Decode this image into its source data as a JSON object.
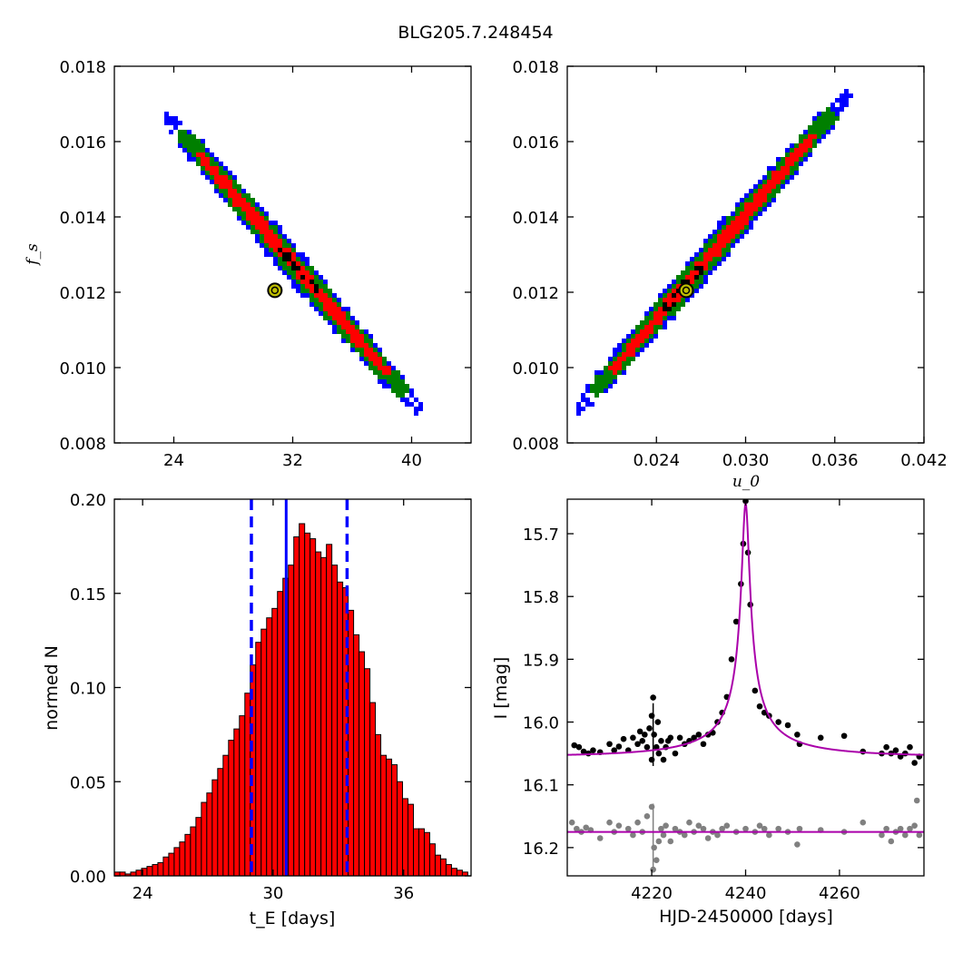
{
  "title": "BLG205.7.248454",
  "chart_data": [
    {
      "type": "heatmap",
      "panel": "top-left",
      "xlabel": "",
      "ylabel": "f_s",
      "xlim": [
        20,
        44
      ],
      "ylim": [
        0.008,
        0.018
      ],
      "xticks": [
        24,
        32,
        40
      ],
      "xtick_labels": [
        "24",
        "32",
        "40"
      ],
      "yticks": [
        0.008,
        0.01,
        0.012,
        0.014,
        0.016,
        0.018
      ],
      "ytick_labels": [
        "0.008",
        "0.010",
        "0.012",
        "0.014",
        "0.016",
        "0.018"
      ],
      "region_colors": {
        "outer": "#0000ff",
        "middle": "#007f00",
        "inner": "#ff0000",
        "core": "#000000"
      },
      "band": {
        "x_start": 23.6,
        "y_start": 0.01665,
        "x_end": 40.4,
        "y_end": 0.0089
      },
      "best_fit": {
        "x": 30.8,
        "y": 0.01205,
        "marker_color": "#bfbf00"
      }
    },
    {
      "type": "heatmap",
      "panel": "top-right",
      "xlabel": "u_0",
      "ylabel": "",
      "xlim": [
        0.018,
        0.042
      ],
      "ylim": [
        0.008,
        0.018
      ],
      "xticks": [
        0.024,
        0.03,
        0.036,
        0.042
      ],
      "xtick_labels": [
        "0.024",
        "0.030",
        "0.036",
        "0.042"
      ],
      "yticks": [
        0.008,
        0.01,
        0.012,
        0.014,
        0.016,
        0.018
      ],
      "ytick_labels": [
        "0.008",
        "0.010",
        "0.012",
        "0.014",
        "0.016",
        "0.018"
      ],
      "region_colors": {
        "outer": "#0000ff",
        "middle": "#007f00",
        "inner": "#ff0000",
        "core": "#000000"
      },
      "band": {
        "x_start": 0.0188,
        "y_start": 0.0089,
        "x_end": 0.0368,
        "y_end": 0.0172
      },
      "best_fit": {
        "x": 0.026,
        "y": 0.01205,
        "marker_color": "#bfbf00"
      }
    },
    {
      "type": "bar",
      "panel": "bottom-left",
      "xlabel": "t_E  [days]",
      "ylabel": "normed N",
      "xlim": [
        22.7,
        39.1
      ],
      "ylim": [
        0.0,
        0.2
      ],
      "xticks": [
        24,
        30,
        36
      ],
      "xtick_labels": [
        "24",
        "30",
        "36"
      ],
      "yticks": [
        0.0,
        0.05,
        0.1,
        0.15,
        0.2
      ],
      "ytick_labels": [
        "0.00",
        "0.05",
        "0.10",
        "0.15",
        "0.20"
      ],
      "bin_start": 22.7,
      "bin_width": 0.25,
      "values": [
        0.002,
        0.002,
        0.001,
        0.002,
        0.003,
        0.004,
        0.005,
        0.006,
        0.007,
        0.01,
        0.012,
        0.015,
        0.018,
        0.022,
        0.026,
        0.031,
        0.039,
        0.044,
        0.051,
        0.057,
        0.064,
        0.072,
        0.078,
        0.085,
        0.097,
        0.112,
        0.124,
        0.131,
        0.137,
        0.142,
        0.151,
        0.158,
        0.165,
        0.18,
        0.187,
        0.182,
        0.179,
        0.172,
        0.169,
        0.176,
        0.165,
        0.156,
        0.153,
        0.141,
        0.128,
        0.119,
        0.11,
        0.092,
        0.075,
        0.064,
        0.062,
        0.059,
        0.05,
        0.041,
        0.038,
        0.025,
        0.025,
        0.023,
        0.017,
        0.011,
        0.009,
        0.006,
        0.004,
        0.003,
        0.002,
        0.001
      ],
      "bar_color": "#ff0000",
      "lines": {
        "median": 30.6,
        "lower": 29.0,
        "upper": 33.4,
        "color": "#0000ff"
      }
    },
    {
      "type": "scatter",
      "panel": "bottom-right",
      "xlabel": "HJD-2450000 [days]",
      "ylabel": "I [mag]",
      "xlim": [
        4202,
        4278
      ],
      "ylim": [
        16.245,
        15.645
      ],
      "xticks": [
        4220,
        4240,
        4260
      ],
      "xtick_labels": [
        "4220",
        "4240",
        "4260"
      ],
      "yticks": [
        15.7,
        15.8,
        15.9,
        16.0,
        16.1,
        16.2
      ],
      "ytick_labels": [
        "15.7",
        "15.8",
        "16.0",
        "16.1",
        "16.2"
      ],
      "ytick_labels_full": [
        "15.7",
        "15.8",
        "15.9",
        "16.0",
        "16.1",
        "16.2"
      ],
      "model": {
        "t0": 4240.0,
        "tE": 30.6,
        "u0": 0.026,
        "fs": 0.012,
        "baseline": 16.055,
        "color": "#aa00aa"
      },
      "residual_baseline": 16.175,
      "series": [
        {
          "kind": "data",
          "color": "#000000",
          "points": [
            [
              4203.5,
              16.037
            ],
            [
              4204.5,
              16.04
            ],
            [
              4205.5,
              16.047
            ],
            [
              4206.5,
              16.05
            ],
            [
              4207.5,
              16.045
            ],
            [
              4209,
              16.048
            ],
            [
              4211,
              16.035
            ],
            [
              4212,
              16.045
            ],
            [
              4213,
              16.039
            ],
            [
              4214,
              16.027
            ],
            [
              4215,
              16.045
            ],
            [
              4216,
              16.025
            ],
            [
              4217,
              16.035
            ],
            [
              4217.5,
              16.015
            ],
            [
              4218,
              16.03
            ],
            [
              4218.5,
              16.02
            ],
            [
              4219,
              16.04
            ],
            [
              4219.5,
              16.01
            ],
            [
              4220,
              15.99
            ],
            [
              4220,
              16.06
            ],
            [
              4220.3,
              15.961
            ],
            [
              4220.5,
              16.02
            ],
            [
              4221,
              16.04
            ],
            [
              4221.3,
              16.0
            ],
            [
              4221.5,
              16.05
            ],
            [
              4222,
              16.03
            ],
            [
              4222.5,
              16.06
            ],
            [
              4223,
              16.04
            ],
            [
              4223.5,
              16.03
            ],
            [
              4224,
              16.025
            ],
            [
              4225,
              16.05
            ],
            [
              4226,
              16.025
            ],
            [
              4227,
              16.035
            ],
            [
              4228,
              16.03
            ],
            [
              4229,
              16.025
            ],
            [
              4230,
              16.02
            ],
            [
              4231,
              16.035
            ],
            [
              4232,
              16.02
            ],
            [
              4233,
              16.017
            ],
            [
              4234,
              16.0
            ],
            [
              4235,
              15.985
            ],
            [
              4236,
              15.96
            ],
            [
              4237,
              15.9
            ],
            [
              4238,
              15.84
            ],
            [
              4239,
              15.78
            ],
            [
              4239.5,
              15.716
            ],
            [
              4240,
              15.648
            ],
            [
              4240.5,
              15.73
            ],
            [
              4241,
              15.813
            ],
            [
              4242,
              15.95
            ],
            [
              4243,
              15.975
            ],
            [
              4244,
              15.985
            ],
            [
              4245,
              15.99
            ],
            [
              4247,
              16.0
            ],
            [
              4249,
              16.005
            ],
            [
              4251,
              16.02
            ],
            [
              4251.5,
              16.035
            ],
            [
              4256,
              16.025
            ],
            [
              4261,
              16.022
            ],
            [
              4265,
              16.047
            ],
            [
              4269,
              16.05
            ],
            [
              4270,
              16.04
            ],
            [
              4271,
              16.05
            ],
            [
              4272,
              16.045
            ],
            [
              4273,
              16.055
            ],
            [
              4274,
              16.05
            ],
            [
              4275,
              16.04
            ],
            [
              4276,
              16.065
            ],
            [
              4277,
              16.055
            ]
          ]
        },
        {
          "kind": "residual",
          "color": "#808080",
          "points": [
            [
              4203,
              16.16
            ],
            [
              4204,
              16.17
            ],
            [
              4205,
              16.175
            ],
            [
              4206,
              16.168
            ],
            [
              4207,
              16.172
            ],
            [
              4209,
              16.185
            ],
            [
              4211,
              16.16
            ],
            [
              4212,
              16.175
            ],
            [
              4213,
              16.165
            ],
            [
              4215,
              16.17
            ],
            [
              4216,
              16.18
            ],
            [
              4217,
              16.16
            ],
            [
              4218,
              16.175
            ],
            [
              4219,
              16.15
            ],
            [
              4220,
              16.135
            ],
            [
              4220.3,
              16.235
            ],
            [
              4220.5,
              16.2
            ],
            [
              4221,
              16.22
            ],
            [
              4221.5,
              16.19
            ],
            [
              4222,
              16.17
            ],
            [
              4222.5,
              16.18
            ],
            [
              4223,
              16.165
            ],
            [
              4224,
              16.19
            ],
            [
              4225,
              16.17
            ],
            [
              4226,
              16.175
            ],
            [
              4227,
              16.18
            ],
            [
              4228,
              16.16
            ],
            [
              4229,
              16.175
            ],
            [
              4230,
              16.165
            ],
            [
              4231,
              16.17
            ],
            [
              4232,
              16.185
            ],
            [
              4233,
              16.175
            ],
            [
              4234,
              16.18
            ],
            [
              4235,
              16.17
            ],
            [
              4236,
              16.165
            ],
            [
              4238,
              16.175
            ],
            [
              4240,
              16.17
            ],
            [
              4242,
              16.175
            ],
            [
              4243,
              16.165
            ],
            [
              4244,
              16.17
            ],
            [
              4245,
              16.18
            ],
            [
              4247,
              16.17
            ],
            [
              4249,
              16.175
            ],
            [
              4251,
              16.195
            ],
            [
              4251.5,
              16.17
            ],
            [
              4256,
              16.172
            ],
            [
              4261,
              16.175
            ],
            [
              4265,
              16.16
            ],
            [
              4269,
              16.18
            ],
            [
              4270,
              16.17
            ],
            [
              4271,
              16.19
            ],
            [
              4272,
              16.175
            ],
            [
              4273,
              16.17
            ],
            [
              4274,
              16.18
            ],
            [
              4275,
              16.17
            ],
            [
              4276,
              16.165
            ],
            [
              4276.5,
              16.125
            ],
            [
              4277,
              16.18
            ]
          ]
        }
      ]
    }
  ]
}
